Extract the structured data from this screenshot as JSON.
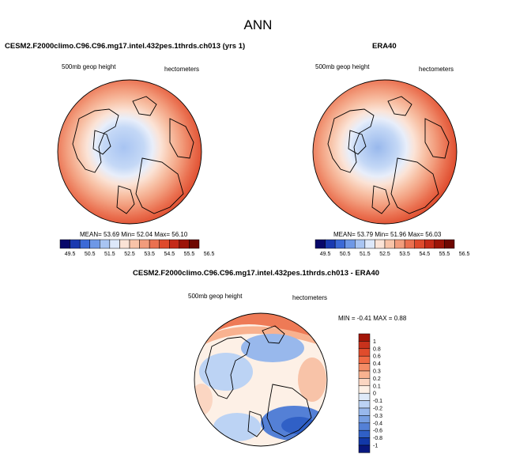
{
  "main_title": "ANN",
  "panels": [
    {
      "title": "CESM2.F2000climo.C96.C96.mg17.intel.432pes.1thrds.ch013 (yrs 1)",
      "left_label": "500mb geop height",
      "right_label": "hectometers",
      "stats": "MEAN= 53.69  Min= 52.04  Max= 56.10"
    },
    {
      "title": "ERA40",
      "left_label": "500mb geop height",
      "right_label": "hectometers",
      "stats": "MEAN= 53.79  Min= 51.96  Max= 56.03"
    },
    {
      "title": "CESM2.F2000climo.C96.C96.mg17.intel.432pes.1thrds.ch013 - ERA40",
      "left_label": "500mb geop height",
      "right_label": "hectometers",
      "stats": "MIN =  -0.41  MAX =   0.88"
    }
  ],
  "field_colorbar": {
    "labels": [
      "49.5",
      "50.5",
      "51.5",
      "52.5",
      "53.5",
      "54.5",
      "55.5",
      "56.5"
    ],
    "colors": [
      "#08086a",
      "#1a3ab0",
      "#3c6ad6",
      "#6e98e6",
      "#a8c4f2",
      "#dde8fa",
      "#fbe3d6",
      "#f8c3a8",
      "#f29c7c",
      "#ea7050",
      "#de4a2c",
      "#c42a18",
      "#9c1408",
      "#6e0802"
    ]
  },
  "diff_colorbar": {
    "labels": [
      "1",
      "0.8",
      "0.6",
      "0.4",
      "0.3",
      "0.2",
      "0.1",
      "0",
      "-0.1",
      "-0.2",
      "-0.3",
      "-0.4",
      "-0.6",
      "-0.8",
      "-1"
    ],
    "colors": [
      "#a31608",
      "#c8321c",
      "#e04c2c",
      "#f06a44",
      "#f48c66",
      "#f8b290",
      "#fbd6c2",
      "#fdf0e6",
      "#dfeaf9",
      "#bcd3f4",
      "#98b8ec",
      "#769ee2",
      "#5480d6",
      "#3060c6",
      "#1238a8",
      "#08177e"
    ]
  },
  "colors": {
    "land_outline": "#000000",
    "cold": "#a8c4f2",
    "warm": "#e25834"
  }
}
